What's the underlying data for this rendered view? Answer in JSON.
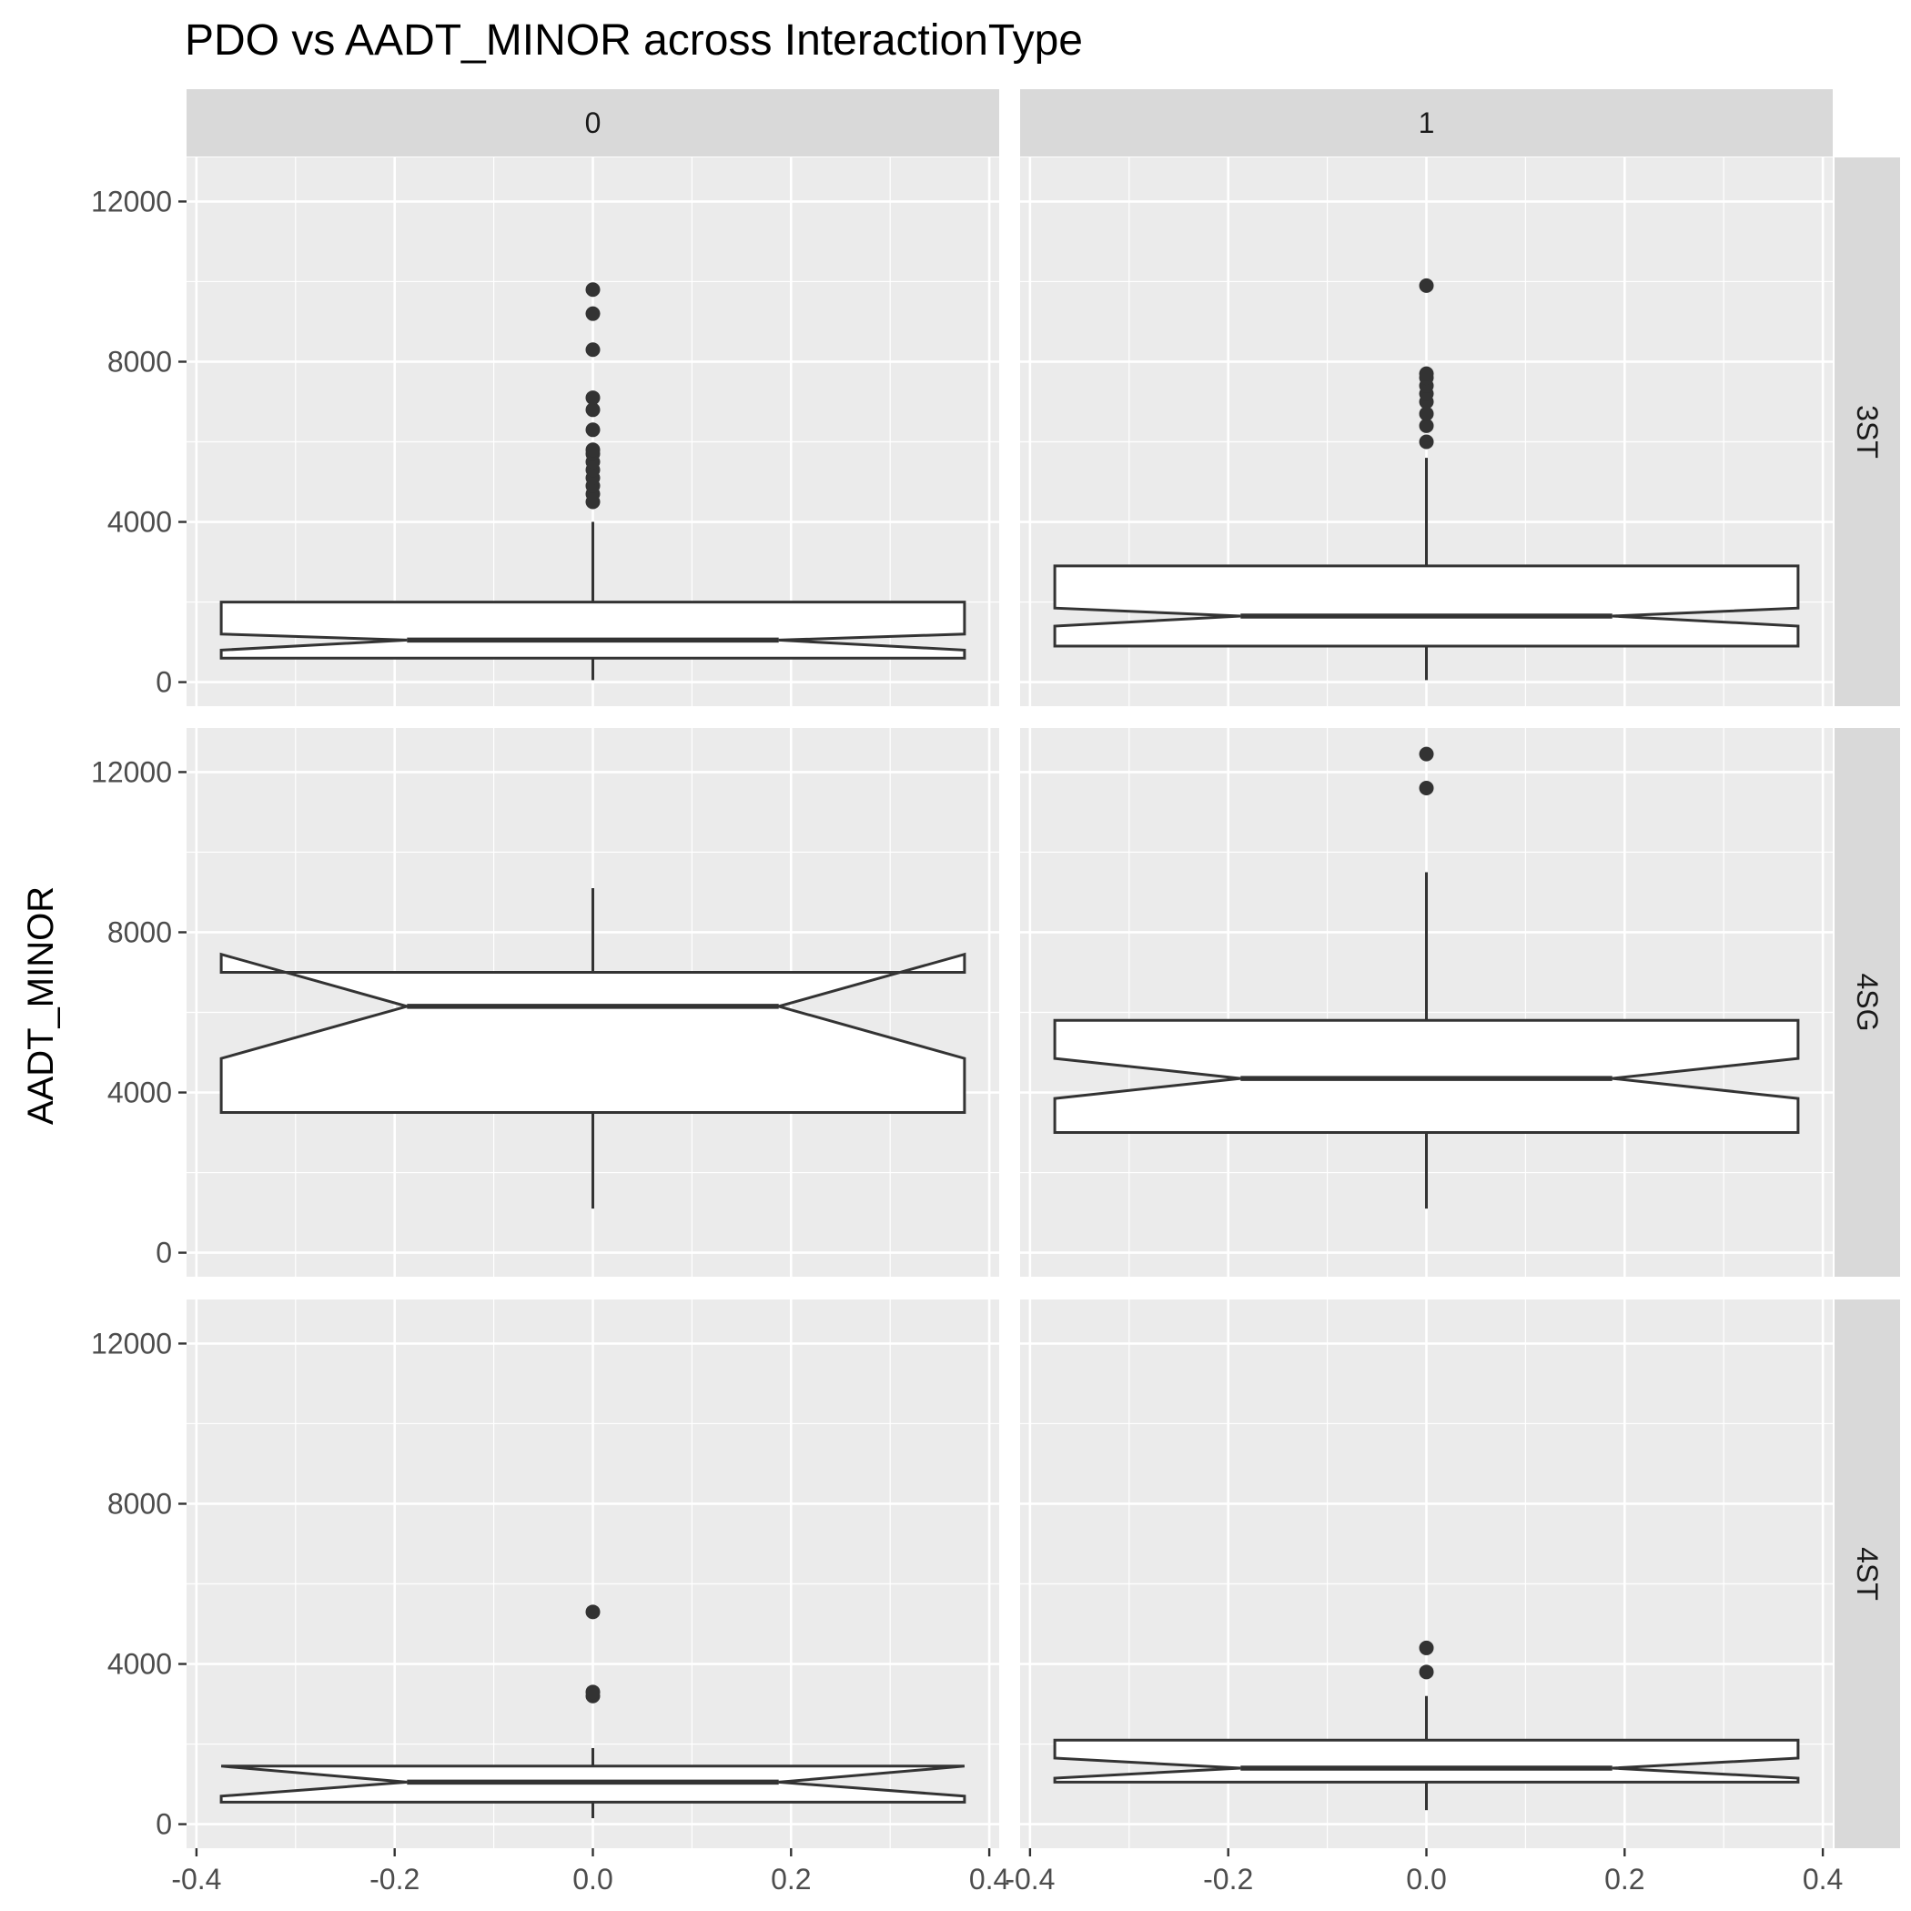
{
  "chart_data": {
    "type": "boxplot",
    "title": "PDO vs AADT_MINOR across InteractionType",
    "xlabel": "",
    "ylabel": "AADT_MINOR",
    "notched": true,
    "grid": true,
    "facet_cols": [
      "0",
      "1"
    ],
    "facet_rows": [
      "3ST",
      "4SG",
      "4ST"
    ],
    "xlim": [
      -0.41,
      0.41
    ],
    "x_ticks": [
      "-0.4",
      "-0.2",
      "0.0",
      "0.2",
      "0.4"
    ],
    "ylim": [
      -600,
      13100
    ],
    "y_ticks": [
      "0",
      "4000",
      "8000",
      "12000"
    ],
    "panels": [
      {
        "col": "0",
        "row": "3ST",
        "lower_whisker": 50,
        "q1": 600,
        "notch_low": 800,
        "median": 1050,
        "notch_high": 1200,
        "q3": 2000,
        "upper_whisker": 4000,
        "outliers": [
          4500,
          4700,
          4900,
          5100,
          5300,
          5500,
          5700,
          5800,
          6300,
          6800,
          7100,
          8300,
          9200,
          9800
        ]
      },
      {
        "col": "1",
        "row": "3ST",
        "lower_whisker": 50,
        "q1": 900,
        "notch_low": 1400,
        "median": 1650,
        "notch_high": 1850,
        "q3": 2900,
        "upper_whisker": 5600,
        "outliers": [
          6000,
          6400,
          6700,
          7000,
          7200,
          7400,
          7600,
          7700,
          9900
        ]
      },
      {
        "col": "0",
        "row": "4SG",
        "lower_whisker": 1100,
        "q1": 3500,
        "notch_low": 4850,
        "median": 6150,
        "notch_high": 7450,
        "q3": 7000,
        "upper_whisker": 9100,
        "outliers": []
      },
      {
        "col": "1",
        "row": "4SG",
        "lower_whisker": 1100,
        "q1": 3000,
        "notch_low": 3850,
        "median": 4350,
        "notch_high": 4850,
        "q3": 5800,
        "upper_whisker": 9500,
        "outliers": [
          11600,
          12450
        ]
      },
      {
        "col": "0",
        "row": "4ST",
        "lower_whisker": 150,
        "q1": 550,
        "notch_low": 700,
        "median": 1050,
        "notch_high": 1450,
        "q3": 1450,
        "upper_whisker": 1900,
        "outliers": [
          3200,
          3300,
          5300
        ]
      },
      {
        "col": "1",
        "row": "4ST",
        "lower_whisker": 350,
        "q1": 1050,
        "notch_low": 1150,
        "median": 1400,
        "notch_high": 1650,
        "q3": 2100,
        "upper_whisker": 3200,
        "outliers": [
          3800,
          4400
        ]
      }
    ]
  }
}
